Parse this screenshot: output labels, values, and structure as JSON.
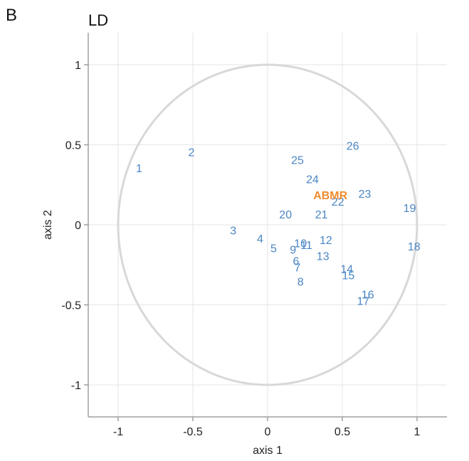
{
  "panel_label": "B",
  "chart_data": {
    "type": "scatter",
    "title": "LD",
    "xlabel": "axis 1",
    "ylabel": "axis 2",
    "xlim": [
      -1.2,
      1.2
    ],
    "ylim": [
      -1.2,
      1.2
    ],
    "xticks": [
      -1,
      -0.5,
      0,
      0.5,
      1
    ],
    "xtick_labels": [
      "-1",
      "-0.5",
      "0",
      "0.5",
      "1"
    ],
    "yticks": [
      -1,
      -0.5,
      0,
      0.5,
      1
    ],
    "ytick_labels": [
      "-1",
      "-0.5",
      "0",
      "0.5",
      "1"
    ],
    "grid": true,
    "unit_circle": true,
    "colors": {
      "points": "#4a86c5",
      "highlight": "#f08c2e",
      "grid": "#e6e6e6",
      "circle": "#d8d8d8",
      "frame": "#a0a0a0"
    },
    "points": [
      {
        "label": "1",
        "x": -0.86,
        "y": 0.35
      },
      {
        "label": "2",
        "x": -0.51,
        "y": 0.45
      },
      {
        "label": "3",
        "x": -0.23,
        "y": -0.04
      },
      {
        "label": "4",
        "x": -0.05,
        "y": -0.09
      },
      {
        "label": "5",
        "x": 0.04,
        "y": -0.15
      },
      {
        "label": "6",
        "x": 0.19,
        "y": -0.23
      },
      {
        "label": "7",
        "x": 0.2,
        "y": -0.27
      },
      {
        "label": "8",
        "x": 0.22,
        "y": -0.36
      },
      {
        "label": "9",
        "x": 0.17,
        "y": -0.16
      },
      {
        "label": "10",
        "x": 0.22,
        "y": -0.12
      },
      {
        "label": "11",
        "x": 0.26,
        "y": -0.13
      },
      {
        "label": "12",
        "x": 0.39,
        "y": -0.1
      },
      {
        "label": "13",
        "x": 0.37,
        "y": -0.2
      },
      {
        "label": "14",
        "x": 0.53,
        "y": -0.28
      },
      {
        "label": "15",
        "x": 0.54,
        "y": -0.32
      },
      {
        "label": "16",
        "x": 0.67,
        "y": -0.44
      },
      {
        "label": "17",
        "x": 0.64,
        "y": -0.48
      },
      {
        "label": "18",
        "x": 0.98,
        "y": -0.14
      },
      {
        "label": "19",
        "x": 0.95,
        "y": 0.1
      },
      {
        "label": "20",
        "x": 0.12,
        "y": 0.06
      },
      {
        "label": "21",
        "x": 0.36,
        "y": 0.06
      },
      {
        "label": "22",
        "x": 0.47,
        "y": 0.14
      },
      {
        "label": "23",
        "x": 0.65,
        "y": 0.19
      },
      {
        "label": "24",
        "x": 0.3,
        "y": 0.28
      },
      {
        "label": "25",
        "x": 0.2,
        "y": 0.4
      },
      {
        "label": "26",
        "x": 0.57,
        "y": 0.49
      },
      {
        "label": "ABMR",
        "x": 0.42,
        "y": 0.18,
        "highlight": true
      }
    ]
  }
}
